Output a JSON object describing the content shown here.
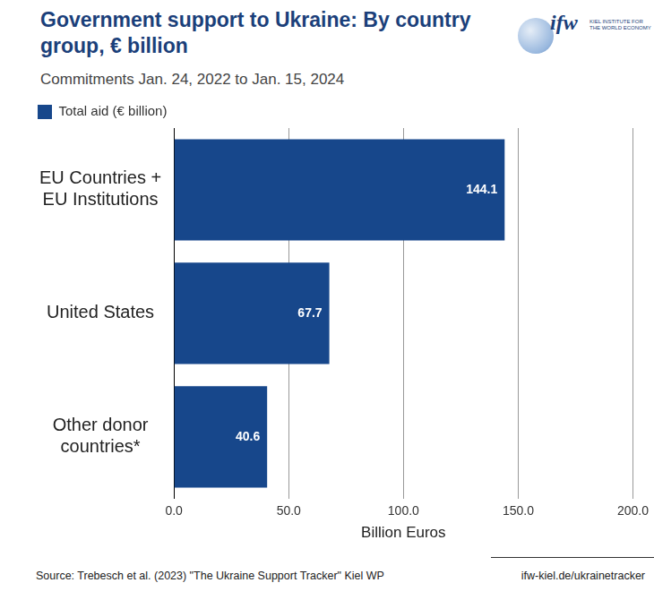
{
  "chart_data": {
    "type": "bar",
    "orientation": "horizontal",
    "title": "Government support to Ukraine: By country group, € billion",
    "subtitle": "Commitments Jan. 24, 2022 to Jan. 15, 2024",
    "categories": [
      "EU Countries + EU Institutions",
      "United States",
      "Other donor countries*"
    ],
    "series": [
      {
        "name": "Total aid (€ billion)",
        "color": "#17478b",
        "values": [
          144.1,
          67.7,
          40.6
        ]
      }
    ],
    "x_label": "Billion Euros",
    "xlim": [
      0,
      200
    ],
    "xticks": [
      {
        "value": 0,
        "label": "0.0"
      },
      {
        "value": 50,
        "label": "50.0"
      },
      {
        "value": 100,
        "label": "100.0"
      },
      {
        "value": 150,
        "label": "150.0"
      },
      {
        "value": 200,
        "label": "200.0"
      }
    ],
    "grid": true,
    "legend": "top-left",
    "data_labels": true,
    "source": "Source: Trebesch et al. (2023) \"The Ukraine Support Tracker\" Kiel WP",
    "url": "ifw-kiel.de/ukrainetracker",
    "logo": {
      "mark": "ifw",
      "text": "KIEL INSTITUTE FOR THE WORLD ECONOMY"
    }
  }
}
